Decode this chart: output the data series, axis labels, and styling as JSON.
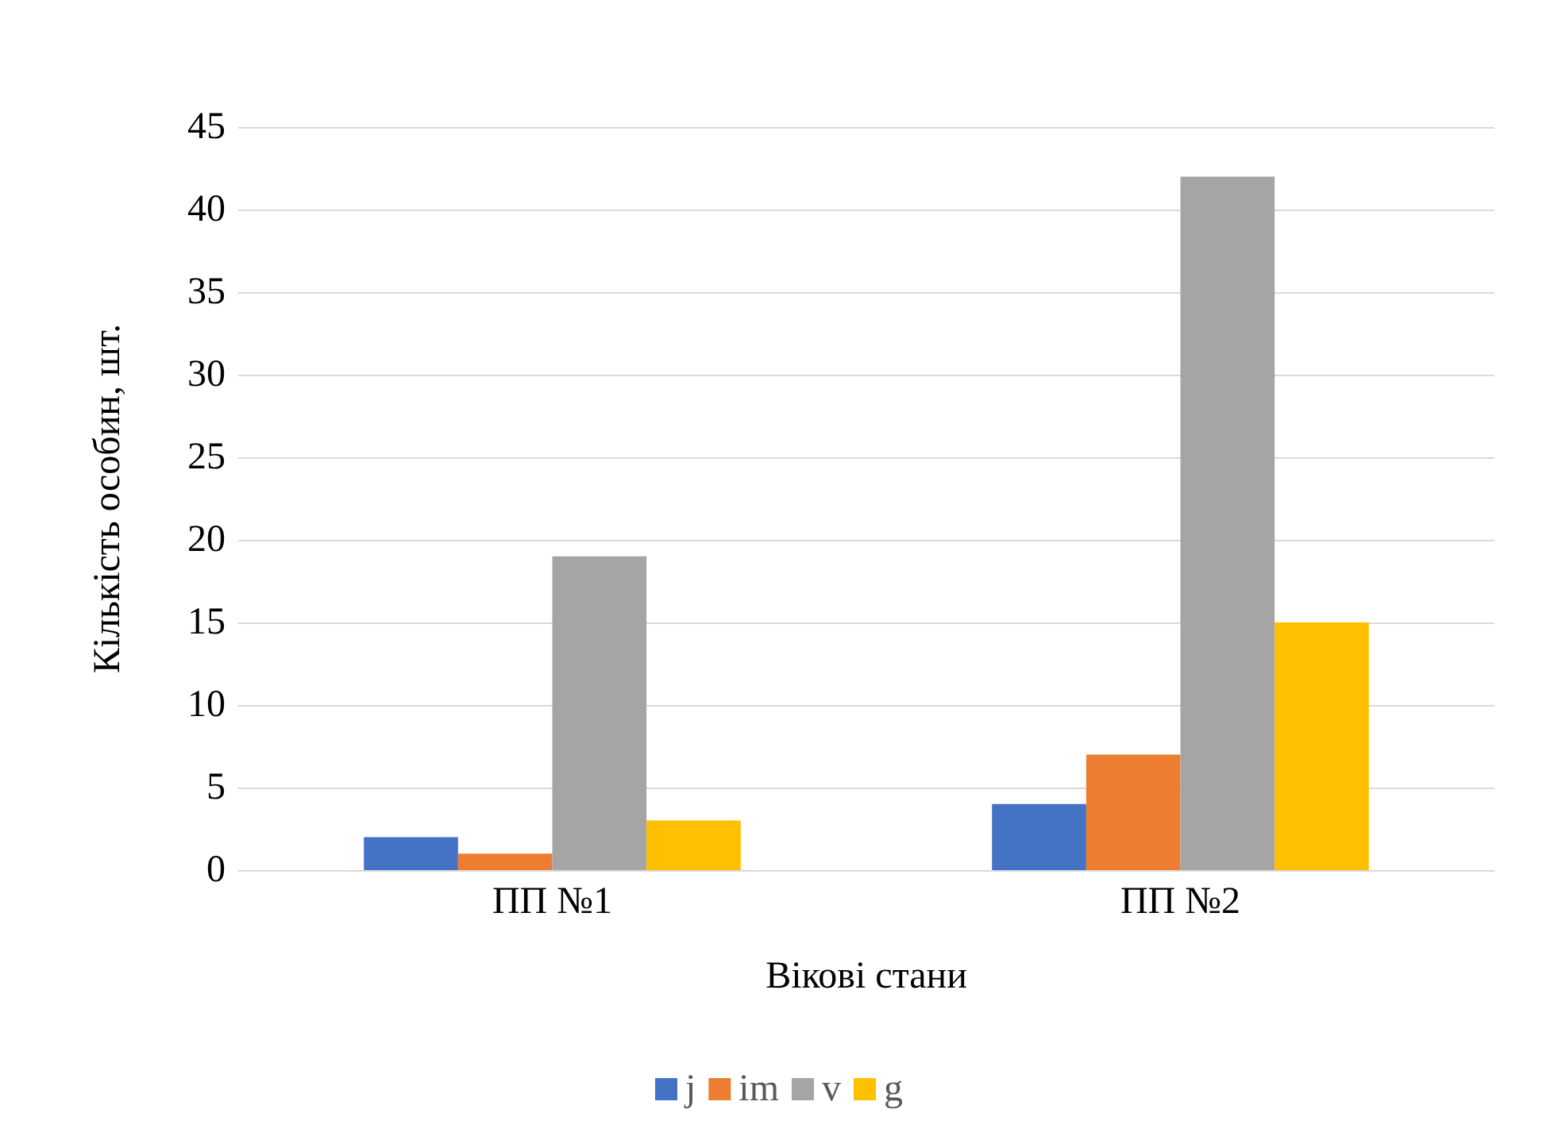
{
  "chart_data": {
    "type": "bar",
    "xlabel": "Вікові стани",
    "ylabel": "Кількість особин, шт.",
    "categories": [
      "ПП №1",
      "ПП №2"
    ],
    "series": [
      {
        "name": "j",
        "color": "#4472c4",
        "values": [
          2,
          4
        ]
      },
      {
        "name": "im",
        "color": "#ed7d31",
        "values": [
          1,
          7
        ]
      },
      {
        "name": "v",
        "color": "#a5a5a5",
        "values": [
          19,
          42
        ]
      },
      {
        "name": "g",
        "color": "#ffc000",
        "values": [
          3,
          15
        ]
      }
    ],
    "ylim": [
      0,
      45
    ],
    "yticks": [
      0,
      5,
      10,
      15,
      20,
      25,
      30,
      35,
      40,
      45
    ],
    "grid": "y",
    "legend": "bottom"
  }
}
